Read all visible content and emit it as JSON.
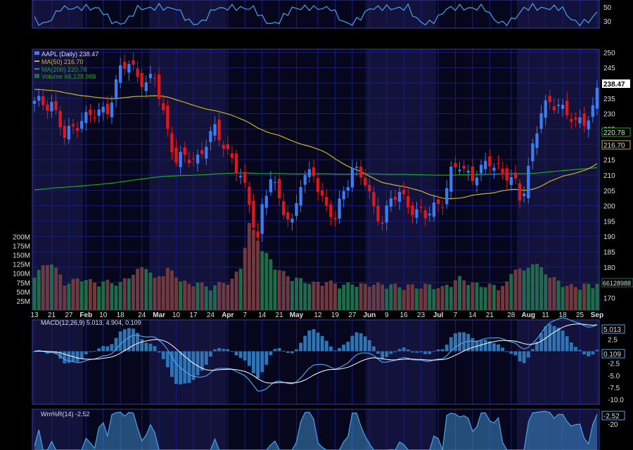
{
  "colors": {
    "background": "#000000",
    "panel_bg": "#06061c",
    "shade": "#12123a",
    "grid": "#1a1d78",
    "axis_text": "#dddddd",
    "up": "#3b7cf2",
    "down": "#e0161b",
    "ma50": "#c8b41e",
    "ma200": "#19a81a",
    "vol_up": "#1f6b4a",
    "vol_down": "#6e3a3f",
    "macd": "#4aa3e8",
    "signal": "#ffffff",
    "hist": "#2f74b4",
    "wpr": "#4aa3e8"
  },
  "chart_data": {
    "type": "candlestick",
    "symbol": "AAPL",
    "legend": {
      "price": "AAPL (Daily) 238.47",
      "ma50": "MA(50) 216.70",
      "ma200": "MA(200) 220.78",
      "volume": "Volume 66,128,988"
    },
    "x_tick_labels": [
      "13",
      "21",
      "27",
      "Feb",
      "10",
      "18",
      "24",
      "Mar",
      "10",
      "17",
      "24",
      "Apr",
      "7",
      "14",
      "21",
      "May",
      "12",
      "19",
      "27",
      "Jun",
      "9",
      "16",
      "23",
      "Jul",
      "7",
      "14",
      "21",
      "28",
      "Aug",
      "11",
      "18",
      "25",
      "Sep"
    ],
    "price_axis": {
      "min": 166,
      "max": 251,
      "ticks": [
        "250",
        "245",
        "240",
        "235",
        "230",
        "225",
        "220",
        "215",
        "210",
        "205",
        "200",
        "195",
        "190",
        "185",
        "180",
        "175",
        "170"
      ]
    },
    "price_badges": {
      "last": "238.47",
      "ma200": "220.78",
      "ma50": "216.70"
    },
    "volume_axis": {
      "ticks": [
        "200M",
        "175M",
        "150M",
        "125M",
        "100M",
        "75M",
        "50M",
        "25M"
      ],
      "last_label": "66128988"
    },
    "top_panel": {
      "ticks": [
        "50",
        "30"
      ]
    },
    "macd": {
      "title": "MACD(12,26,9) 5.013, 4.904, 0.109",
      "ticks": [
        "2.5",
        "0",
        "-2.5",
        "-5.0",
        "-7.5",
        "-10.0"
      ],
      "badges": {
        "macd": "5.013",
        "hist": "0.109"
      }
    },
    "wpr": {
      "title": "Wm%R(14) -2.52",
      "ticks": [
        "-20"
      ],
      "badge": "-2.52"
    },
    "anchors": [
      [
        0,
        233,
        88
      ],
      [
        4,
        234,
        120
      ],
      [
        7,
        222,
        60
      ],
      [
        11,
        229,
        75
      ],
      [
        14,
        229,
        62
      ],
      [
        17,
        232,
        65
      ],
      [
        20,
        244,
        60
      ],
      [
        22,
        246,
        80
      ],
      [
        26,
        240,
        110
      ],
      [
        28,
        241,
        70
      ],
      [
        31,
        225,
        100
      ],
      [
        33,
        215,
        80
      ],
      [
        36,
        215,
        55
      ],
      [
        38,
        216,
        65
      ],
      [
        40,
        221,
        50
      ],
      [
        42,
        224,
        55
      ],
      [
        46,
        216,
        70
      ],
      [
        48,
        209,
        105
      ],
      [
        50,
        200,
        220
      ],
      [
        52,
        190,
        185
      ],
      [
        53,
        200,
        150
      ],
      [
        55,
        209,
        125
      ],
      [
        57,
        201,
        95
      ],
      [
        60,
        195,
        75
      ],
      [
        62,
        207,
        70
      ],
      [
        65,
        211,
        60
      ],
      [
        68,
        199,
        65
      ],
      [
        70,
        195,
        60
      ],
      [
        72,
        205,
        55
      ],
      [
        74,
        213,
        60
      ],
      [
        77,
        207,
        55
      ],
      [
        79,
        199,
        60
      ],
      [
        81,
        196,
        55
      ],
      [
        83,
        201,
        58
      ],
      [
        85,
        204,
        50
      ],
      [
        87,
        201,
        55
      ],
      [
        89,
        198,
        50
      ],
      [
        91,
        196,
        55
      ],
      [
        93,
        200,
        52
      ],
      [
        95,
        202,
        48
      ],
      [
        97,
        210,
        62
      ],
      [
        99,
        213,
        75
      ],
      [
        102,
        210,
        60
      ],
      [
        104,
        211,
        55
      ],
      [
        106,
        214,
        55
      ],
      [
        108,
        213,
        50
      ],
      [
        110,
        210,
        60
      ],
      [
        112,
        206,
        110
      ],
      [
        113,
        202,
        100
      ],
      [
        114,
        206,
        90
      ],
      [
        116,
        220,
        120
      ],
      [
        118,
        230,
        100
      ],
      [
        120,
        233,
        80
      ],
      [
        122,
        234,
        65
      ],
      [
        124,
        230,
        55
      ],
      [
        126,
        226,
        50
      ],
      [
        128,
        228,
        58
      ],
      [
        130,
        232,
        50
      ],
      [
        131,
        238.47,
        66
      ]
    ],
    "n_bars": 132
  }
}
